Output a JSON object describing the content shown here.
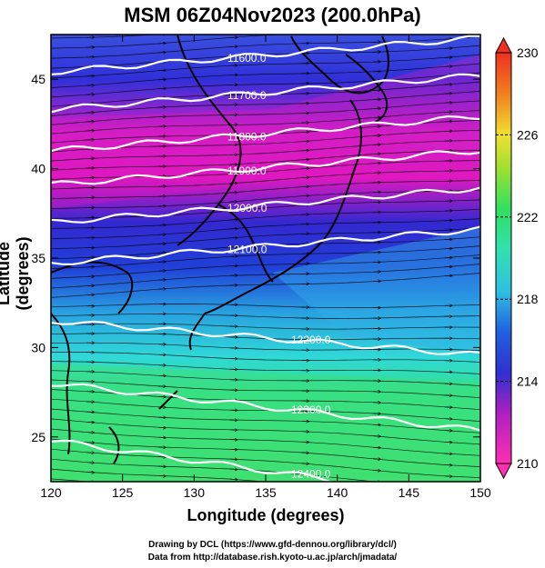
{
  "title": "MSM 06Z04Nov2023 (200.0hPa)",
  "x_axis": {
    "label": "Longitude (degrees)",
    "min": 120,
    "max": 150,
    "ticks": [
      "120",
      "125",
      "130",
      "135",
      "140",
      "145",
      "150"
    ]
  },
  "y_axis": {
    "label": "Latitude  (degrees)",
    "min": 22.5,
    "max": 47.5,
    "ticks": [
      "25",
      "30",
      "35",
      "40",
      "45"
    ]
  },
  "colorbar": {
    "min": 210,
    "max": 230,
    "ticks": [
      "210",
      "214",
      "218",
      "222",
      "226",
      "230"
    ]
  },
  "contours": [
    {
      "label": "11500.0",
      "lat": 47.6
    },
    {
      "label": "11600.0",
      "lat": 45.4
    },
    {
      "label": "11700.0",
      "lat": 43.3
    },
    {
      "label": "11800.0",
      "lat": 41.0
    },
    {
      "label": "11900.0",
      "lat": 39.1
    },
    {
      "label": "12000.0",
      "lat": 37.0
    },
    {
      "label": "12100.0",
      "lat": 34.7
    },
    {
      "label": "12200.0",
      "lat": 31.5
    },
    {
      "label": "12300.0",
      "lat": 28.0
    },
    {
      "label": "12400.0",
      "lat": 24.8
    }
  ],
  "credits": {
    "line1": "Drawing by DCL (https://www.gfd-dennou.org/library/dcl/)",
    "line2": "Data from http://database.rish.kyoto-u.ac.jp/arch/jmadata/"
  },
  "colors": {
    "jet_core": "#e010c0",
    "cold_blue": "#2030d0",
    "mid_cyan": "#30d0e0",
    "warm_green": "#30e070"
  }
}
